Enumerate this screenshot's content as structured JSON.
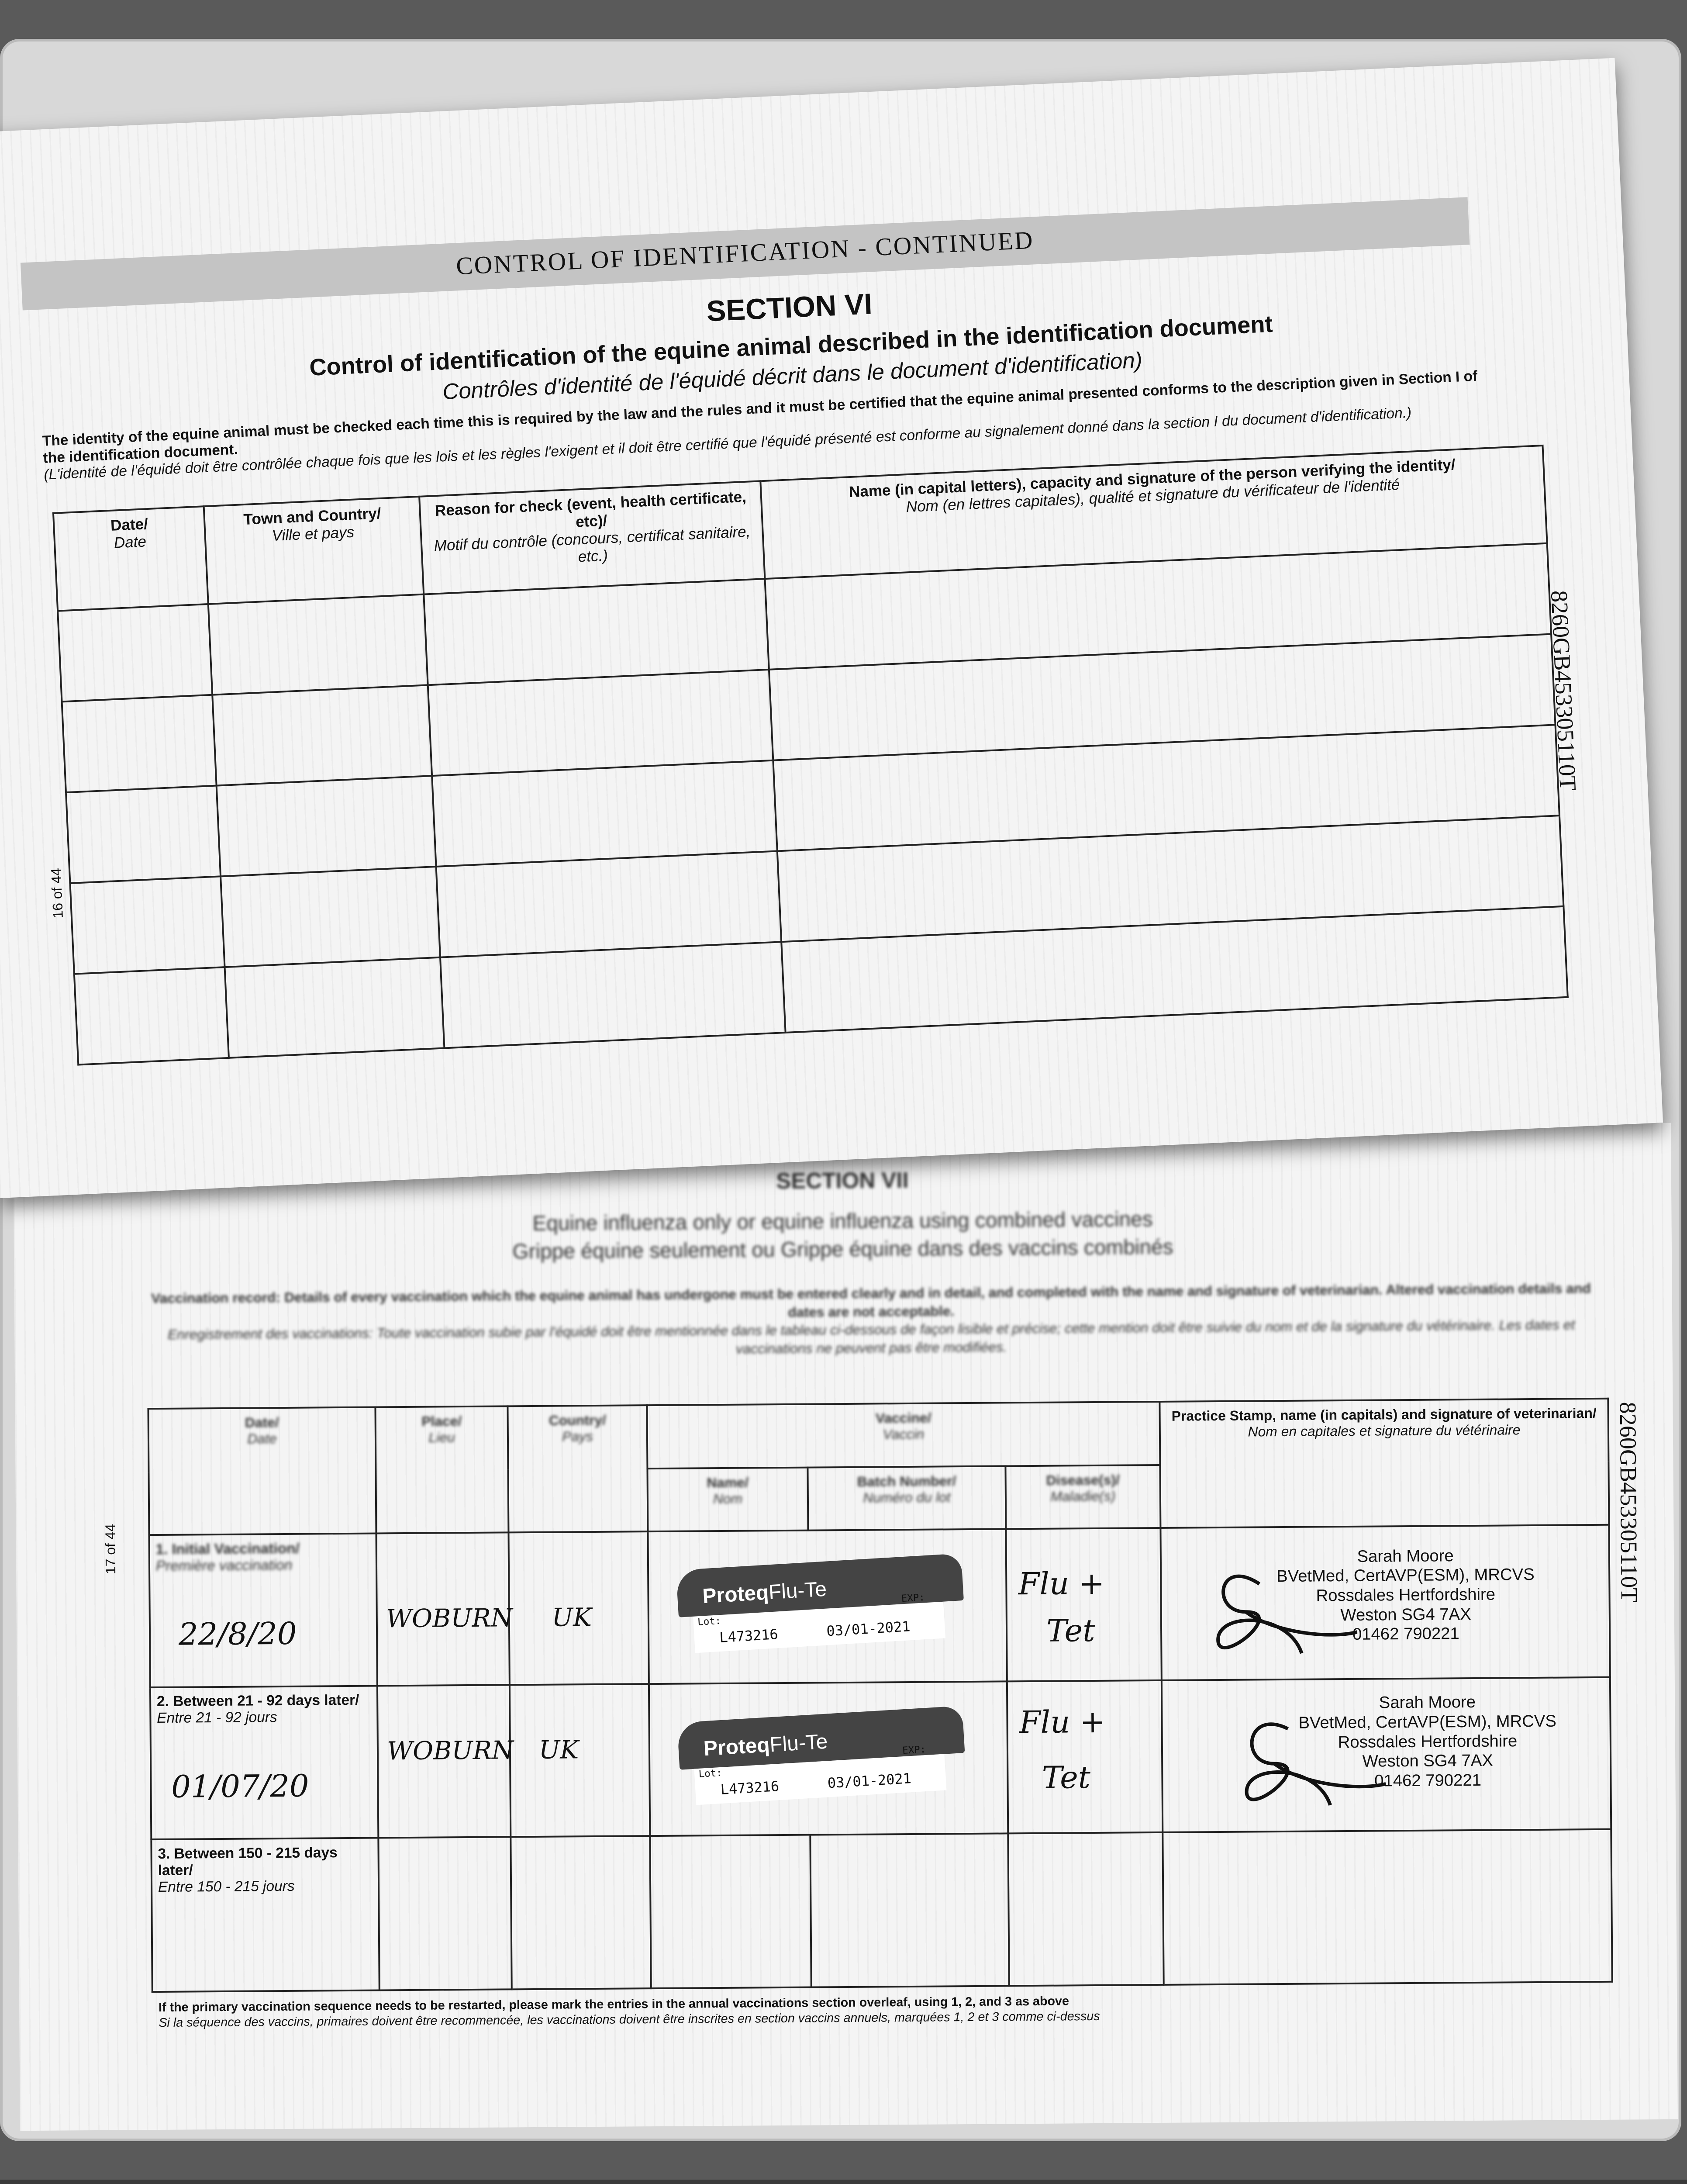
{
  "top_page": {
    "banner": "CONTROL OF IDENTIFICATION - CONTINUED",
    "section": "SECTION VI",
    "title": "Control of identification of the equine animal described in the identification document",
    "title_fr": "Contrôles d'identité de l'équidé décrit dans le document d'identification)",
    "intro_en_bold": "The identity of the equine animal must be checked each time this is required by the law and the rules and it must be certified that the equine animal presented conforms to the description given in Section I of the identification document.",
    "intro_fr": "(L'identité de l'équidé doit être contrôlée chaque fois que les lois et les règles l'exigent et il doit être certifié que l'équidé présenté est conforme au signalement donné dans la section I du document d'identification.)",
    "columns": [
      {
        "en": "Date/",
        "fr": "Date"
      },
      {
        "en": "Town and Country/",
        "fr": "Ville et pays"
      },
      {
        "en": "Reason for check (event, health certificate, etc)/",
        "fr": "Motif du contrôle (concours, certificat sanitaire, etc.)"
      },
      {
        "en": "Name (in capital letters), capacity and signature of the person verifying the identity/",
        "fr": "Nom (en lettres capitales), qualité et signature du vérificateur de l'identité"
      }
    ],
    "rows": 5,
    "page_number": "16 of 44",
    "passport_id": "8260GB453305110T"
  },
  "bottom_page": {
    "section": "SECTION VII",
    "title": "Equine influenza only or equine influenza using combined vaccines",
    "title_fr": "Grippe équine seulement ou Grippe équine dans des vaccins combinés",
    "intro_en": "Vaccination record: Details of every vaccination which the equine animal has undergone must be entered clearly and in detail, and completed with the name and signature of veterinarian. Altered vaccination details and dates are not acceptable.",
    "intro_fr": "Enregistrement des vaccinations: Toute vaccination subie par l'équidé doit être mentionnée dans le tableau ci-dessous de façon lisible et précise; cette mention doit être suivie du nom et de la signature du vétérinaire. Les dates et vaccinations ne peuvent pas être modifiées.",
    "headers": {
      "date": {
        "en": "Date/",
        "fr": "Date"
      },
      "place": {
        "en": "Place/",
        "fr": "Lieu"
      },
      "country": {
        "en": "Country/",
        "fr": "Pays"
      },
      "vaccine": {
        "en": "Vaccine/",
        "fr": "Vaccin"
      },
      "name": {
        "en": "Name/",
        "fr": "Nom"
      },
      "batch": {
        "en": "Batch Number/",
        "fr": "Numéro du lot"
      },
      "disease": {
        "en": "Disease(s)/",
        "fr": "Maladie(s)"
      },
      "stamp": {
        "en": "Practice Stamp, name (in capitals) and signature of veterinarian/",
        "fr": "Nom en capitales et signature du vétérinaire"
      }
    },
    "rows": [
      {
        "label_en": "1. Initial Vaccination/",
        "label_fr": "Première vaccination",
        "date": "22/8/20",
        "place": "WOBURN",
        "country": "UK",
        "sticker": {
          "brand": "Proteq",
          "product": "Flu-Te",
          "lot_label": "Lot:",
          "lot": "L473216",
          "exp_label": "EXP:",
          "exp": "03/01-2021"
        },
        "disease_1": "Flu +",
        "disease_2": "Tet",
        "stamp": {
          "name": "Sarah Moore",
          "quals": "BVetMed, CertAVP(ESM), MRCVS",
          "practice": "Rossdales Hertfordshire",
          "address": "Weston SG4 7AX",
          "phone": "01462 790221"
        }
      },
      {
        "label_en": "2. Between 21 - 92 days later/",
        "label_fr": "Entre 21 - 92 jours",
        "date": "01/07/20",
        "place": "WOBURN",
        "country": "UK",
        "sticker": {
          "brand": "Proteq",
          "product": "Flu-Te",
          "lot_label": "Lot:",
          "lot": "L473216",
          "exp_label": "EXP:",
          "exp": "03/01-2021"
        },
        "disease_1": "Flu +",
        "disease_2": "Tet",
        "stamp": {
          "name": "Sarah Moore",
          "quals": "BVetMed, CertAVP(ESM), MRCVS",
          "practice": "Rossdales Hertfordshire",
          "address": "Weston SG4 7AX",
          "phone": "01462 790221"
        }
      },
      {
        "label_en": "3. Between 150 - 215 days later/",
        "label_fr": "Entre 150 - 215 jours"
      }
    ],
    "footnote_en": "If the primary vaccination sequence needs to be restarted, please mark the entries in the annual vaccinations section overleaf, using 1, 2, and 3 as above",
    "footnote_fr": "Si la séquence des vaccins, primaires doivent être recommencée, les vaccinations doivent être inscrites en section vaccins annuels, marquées 1, 2 et 3 comme ci-dessus",
    "page_number": "17 of 44",
    "passport_id": "8260GB453305110T"
  }
}
